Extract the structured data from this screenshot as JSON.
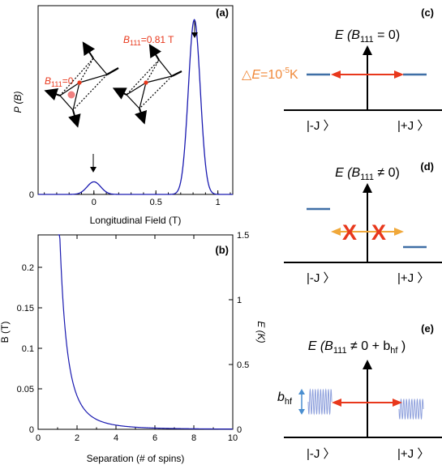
{
  "chart_data": [
    {
      "panel": "(a)",
      "type": "line",
      "xlabel": "Longitudinal Field (T)",
      "ylabel": "P (B)",
      "xlim": [
        -0.45,
        1.12
      ],
      "ylim": [
        0,
        1.08
      ],
      "xticks": [
        "0",
        "0.5",
        "1"
      ],
      "yticks": [
        "0"
      ],
      "series": [
        {
          "color": "#1a1ab0",
          "peaks": [
            {
              "center": 0.0,
              "height": 0.072,
              "width": 0.055
            },
            {
              "center": 0.81,
              "height": 1.0,
              "width": 0.048
            }
          ]
        }
      ],
      "annotations": {
        "label_zero_prefix": "B",
        "label_zero_sub": "111",
        "label_zero_suffix": "=0",
        "label_peak_prefix": "B",
        "label_peak_sub": "111",
        "label_peak_suffix": "=0.81 T"
      }
    },
    {
      "panel": "(b)",
      "type": "line",
      "xlabel": "Separation (# of spins)",
      "ylabel_left": "B (T)",
      "ylabel_right": "E (K)",
      "xlim": [
        0,
        10
      ],
      "ylim": [
        0,
        0.24
      ],
      "ylim_right": [
        0,
        1.5
      ],
      "xticks": [
        "0",
        "2",
        "4",
        "6",
        "8",
        "10"
      ],
      "yticks": [
        "0",
        "0.05",
        "0.1",
        "0.15",
        "0.2"
      ],
      "yticks_right": [
        "0",
        "0.5",
        "1",
        "1.5"
      ],
      "curve": {
        "form": "B = A / r^3",
        "A": 0.33,
        "x_start": 1.03
      },
      "x": [
        1.1,
        1.5,
        2,
        2.5,
        3,
        4,
        5,
        6,
        8,
        10
      ],
      "values": [
        0.248,
        0.098,
        0.041,
        0.021,
        0.012,
        0.0052,
        0.0026,
        0.0015,
        0.0006,
        0.0003
      ],
      "color": "#1a1ab0"
    }
  ],
  "diagrams": {
    "c": {
      "panel": "(c)",
      "title_prefix": "E (B",
      "title_sub": "111",
      "title_suffix": " = 0)",
      "energy_label_prefix": "△",
      "energy_label_mid": "E",
      "energy_label_suffix": "=10",
      "energy_label_exp": "-5",
      "energy_label_unit": "K",
      "ket_left": "|-J 〉",
      "ket_right": "|+J 〉"
    },
    "d": {
      "panel": "(d)",
      "title_prefix": "E (B",
      "title_sub": "111",
      "title_suffix": " ≠ 0)",
      "cross": "X",
      "ket_left": "|-J 〉",
      "ket_right": "|+J 〉"
    },
    "e": {
      "panel": "(e)",
      "title_prefix": "E (B",
      "title_sub": "111",
      "title_mid": " ≠ 0 + b",
      "title_sub2": "hf",
      "title_suffix": " )",
      "side_label": "b",
      "side_sub": "hf",
      "ket_left": "|-J 〉",
      "ket_right": "|+J 〉"
    }
  },
  "colors": {
    "curve": "#1a1ab0",
    "red": "#e8381c",
    "orange": "#f0893a",
    "level": "#3f6fa6",
    "wave": "#8ea0dc",
    "bhf_arrow": "#4a8ed0"
  }
}
